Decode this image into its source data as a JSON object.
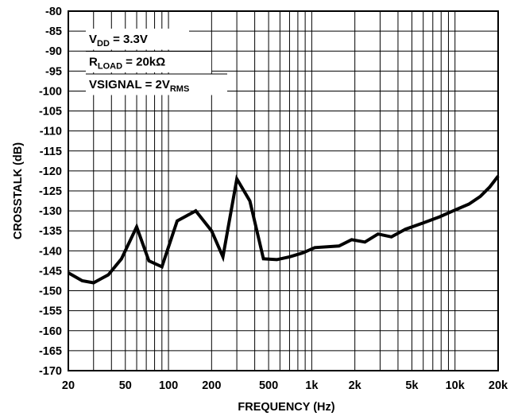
{
  "chart_data": {
    "type": "line",
    "title": "",
    "xlabel": "FREQUENCY (Hz)",
    "ylabel": "CROSSTALK (dB)",
    "xscale": "log",
    "xlim": [
      20,
      20000
    ],
    "ylim": [
      -170,
      -80
    ],
    "grid": true,
    "x_tick_labels": [
      {
        "value": 20,
        "label": "20"
      },
      {
        "value": 50,
        "label": "50"
      },
      {
        "value": 100,
        "label": "100"
      },
      {
        "value": 200,
        "label": "200"
      },
      {
        "value": 500,
        "label": "500"
      },
      {
        "value": 1000,
        "label": "1k"
      },
      {
        "value": 2000,
        "label": "2k"
      },
      {
        "value": 5000,
        "label": "5k"
      },
      {
        "value": 10000,
        "label": "10k"
      },
      {
        "value": 20000,
        "label": "20k"
      }
    ],
    "y_ticks": [
      -80,
      -85,
      -90,
      -95,
      -100,
      -105,
      -110,
      -115,
      -120,
      -125,
      -130,
      -135,
      -140,
      -145,
      -150,
      -155,
      -160,
      -165,
      -170
    ],
    "annotations": [
      {
        "main": "V",
        "sub": "DD",
        "tail": " = 3.3V"
      },
      {
        "main": "R",
        "sub": "LOAD",
        "tail": " = 20kΩ"
      },
      {
        "main": "VSIGNAL = 2V",
        "sub": "RMS",
        "tail": ""
      }
    ],
    "series": [
      {
        "color": "#000000",
        "points": [
          [
            20,
            -145.5
          ],
          [
            25,
            -147.5
          ],
          [
            30,
            -148
          ],
          [
            38,
            -146
          ],
          [
            47,
            -142
          ],
          [
            60,
            -134
          ],
          [
            73,
            -142.5
          ],
          [
            90,
            -144
          ],
          [
            115,
            -132.5
          ],
          [
            155,
            -130
          ],
          [
            200,
            -135
          ],
          [
            240,
            -141.5
          ],
          [
            300,
            -122
          ],
          [
            370,
            -127.5
          ],
          [
            460,
            -142
          ],
          [
            570,
            -142.2
          ],
          [
            700,
            -141.5
          ],
          [
            870,
            -140.5
          ],
          [
            1050,
            -139.2
          ],
          [
            1550,
            -138.8
          ],
          [
            1900,
            -137.2
          ],
          [
            2350,
            -137.8
          ],
          [
            2900,
            -135.8
          ],
          [
            3600,
            -136.5
          ],
          [
            4500,
            -134.6
          ],
          [
            6000,
            -133
          ],
          [
            7800,
            -131.5
          ],
          [
            10000,
            -129.8
          ],
          [
            12500,
            -128.3
          ],
          [
            15000,
            -126.4
          ],
          [
            17500,
            -124
          ],
          [
            20000,
            -121.3
          ]
        ]
      }
    ]
  }
}
